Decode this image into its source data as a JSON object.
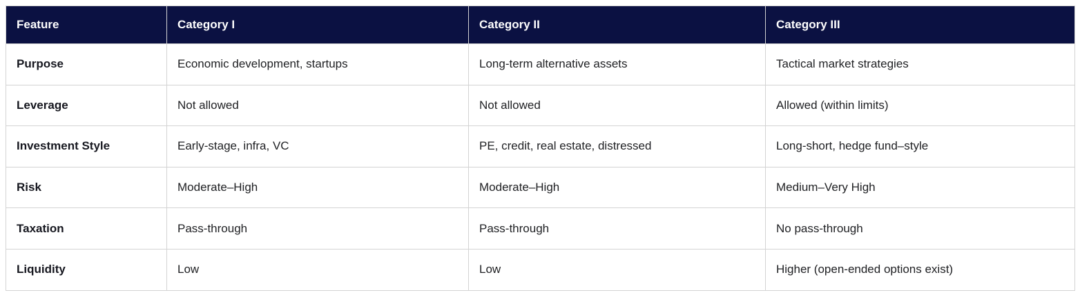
{
  "table": {
    "accent_color": "#0b1142",
    "border_color": "#d3d3d3",
    "columns": [
      "Feature",
      "Category I",
      "Category II",
      "Category III"
    ],
    "rows": [
      {
        "feature": "Purpose",
        "values": [
          "Economic development, startups",
          "Long-term alternative assets",
          "Tactical market strategies"
        ]
      },
      {
        "feature": "Leverage",
        "values": [
          "Not allowed",
          "Not allowed",
          "Allowed (within limits)"
        ]
      },
      {
        "feature": "Investment Style",
        "values": [
          "Early-stage, infra, VC",
          "PE, credit, real estate, distressed",
          "Long-short, hedge fund–style"
        ]
      },
      {
        "feature": "Risk",
        "values": [
          "Moderate–High",
          "Moderate–High",
          "Medium–Very High"
        ]
      },
      {
        "feature": "Taxation",
        "values": [
          "Pass-through",
          "Pass-through",
          "No pass-through"
        ]
      },
      {
        "feature": "Liquidity",
        "values": [
          "Low",
          "Low",
          "Higher (open-ended options exist)"
        ]
      }
    ]
  }
}
